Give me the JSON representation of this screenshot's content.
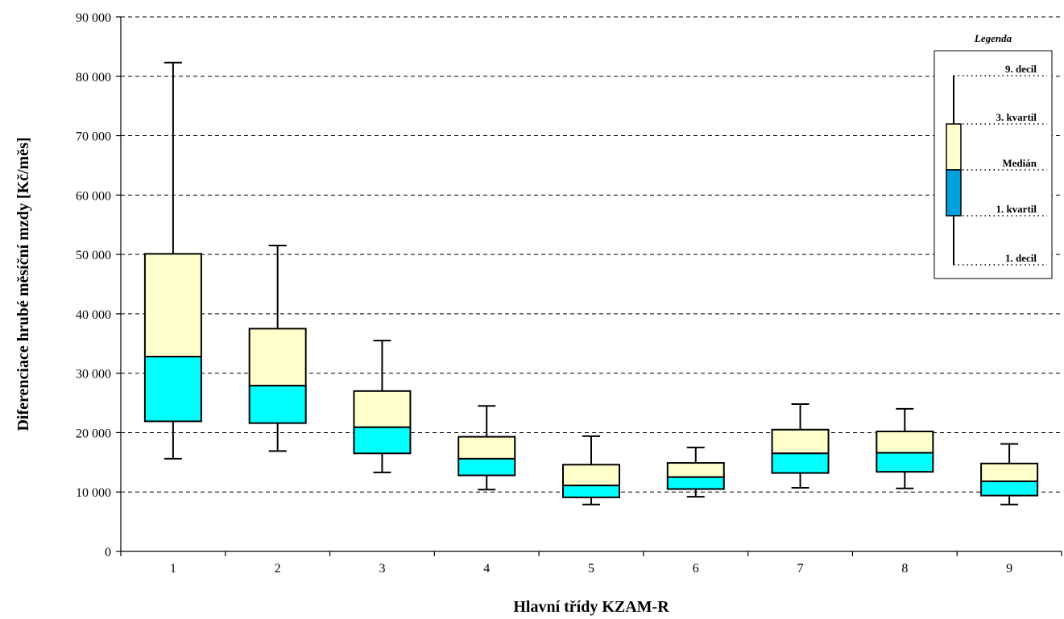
{
  "chart_data": {
    "type": "boxplot",
    "xlabel": "Hlavní třídy KZAM-R",
    "ylabel": "Diferenciace hrubé měsíční mzdy [Kč/měs]",
    "ylim": [
      0,
      90000
    ],
    "ytick_step": 10000,
    "ytick_labels": [
      "0",
      "10 000",
      "20 000",
      "30 000",
      "40 000",
      "50 000",
      "60 000",
      "70 000",
      "80 000",
      "90 000"
    ],
    "grid": "horizontal dashed",
    "categories": [
      "1",
      "2",
      "3",
      "4",
      "5",
      "6",
      "7",
      "8",
      "9"
    ],
    "boxes": [
      {
        "category": "1",
        "d1": 15600,
        "q1": 21900,
        "median": 32800,
        "q3": 50100,
        "d9": 82300
      },
      {
        "category": "2",
        "d1": 16900,
        "q1": 21600,
        "median": 27900,
        "q3": 37500,
        "d9": 51500
      },
      {
        "category": "3",
        "d1": 13300,
        "q1": 16500,
        "median": 20900,
        "q3": 27000,
        "d9": 35500
      },
      {
        "category": "4",
        "d1": 10400,
        "q1": 12800,
        "median": 15600,
        "q3": 19300,
        "d9": 24500
      },
      {
        "category": "5",
        "d1": 7900,
        "q1": 9100,
        "median": 11100,
        "q3": 14600,
        "d9": 19400
      },
      {
        "category": "6",
        "d1": 9200,
        "q1": 10500,
        "median": 12500,
        "q3": 14900,
        "d9": 17500
      },
      {
        "category": "7",
        "d1": 10700,
        "q1": 13200,
        "median": 16500,
        "q3": 20500,
        "d9": 24800
      },
      {
        "category": "8",
        "d1": 10600,
        "q1": 13400,
        "median": 16600,
        "q3": 20200,
        "d9": 24000
      },
      {
        "category": "9",
        "d1": 7900,
        "q1": 9400,
        "median": 11800,
        "q3": 14800,
        "d9": 18100
      }
    ],
    "legend": {
      "title": "Legenda",
      "placement": "top-right",
      "items": [
        "9. decil",
        "3. kvartil",
        "Medián",
        "1. kvartil",
        "1. decil"
      ]
    },
    "colors": {
      "upper_box": "#FFFFCC",
      "lower_box": "#00FFFF",
      "legend_lower_box": "#00A0E0",
      "grid": "#000000"
    }
  }
}
